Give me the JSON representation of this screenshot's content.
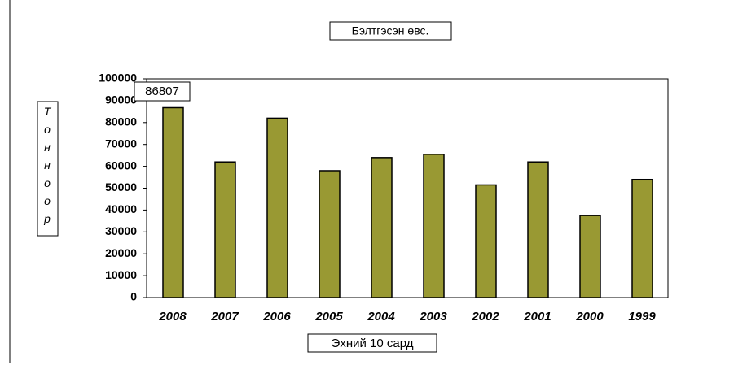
{
  "chart_data": {
    "type": "bar",
    "title": "Бэлтгэсэн өвс.",
    "y_label": "Тонноор",
    "x_label": "Эхний 10 сард",
    "categories": [
      "2008",
      "2007",
      "2006",
      "2005",
      "2004",
      "2003",
      "2002",
      "2001",
      "2000",
      "1999"
    ],
    "values": [
      86807,
      62000,
      82000,
      58000,
      64000,
      65500,
      51500,
      62000,
      37500,
      54000
    ],
    "color": "#999933",
    "ylim": [
      0,
      100000
    ],
    "yticks": [
      0,
      10000,
      20000,
      30000,
      40000,
      50000,
      60000,
      70000,
      80000,
      90000,
      100000
    ]
  }
}
